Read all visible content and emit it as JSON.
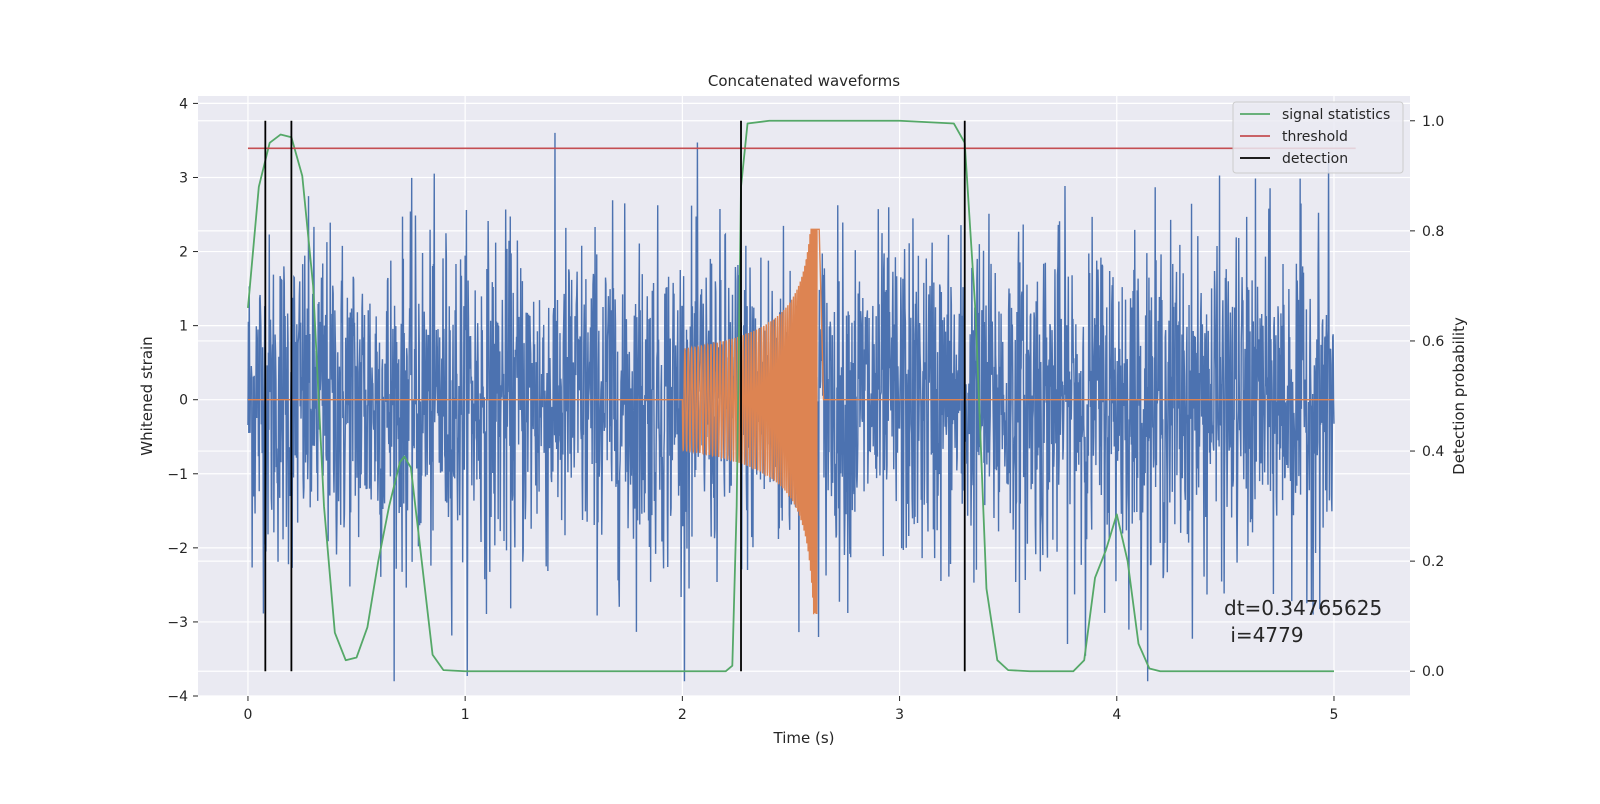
{
  "chart_data": {
    "type": "line",
    "title": "Concatenated waveforms",
    "xlabel": "Time (s)",
    "ylabel_left": "Whitened strain",
    "ylabel_right": "Detection probability",
    "xlim": [
      -0.23,
      5.35
    ],
    "ylim_left": [
      -4.0,
      4.1
    ],
    "ylim_right": [
      -0.045,
      1.045
    ],
    "x_ticks": [
      "0",
      "1",
      "2",
      "3",
      "4",
      "5"
    ],
    "x_tick_values": [
      0,
      1,
      2,
      3,
      4,
      5
    ],
    "y_left_ticks": [
      "4",
      "3",
      "2",
      "1",
      "0",
      "−1",
      "−2",
      "−3",
      "−4"
    ],
    "y_left_tick_values": [
      4,
      3,
      2,
      1,
      0,
      -1,
      -2,
      -3,
      -4
    ],
    "y_right_ticks": [
      "1.0",
      "0.8",
      "0.6",
      "0.4",
      "0.2",
      "0.0"
    ],
    "y_right_tick_values": [
      1.0,
      0.8,
      0.6,
      0.4,
      0.2,
      0.0
    ],
    "grid": true,
    "legend_position": "top-right",
    "legend": [
      {
        "label": "signal statistics",
        "color": "#55a868"
      },
      {
        "label": "threshold",
        "color": "#c44e52"
      },
      {
        "label": "detection",
        "color": "#000000"
      }
    ],
    "annotation_line1": "dt=0.34765625",
    "annotation_line2": " i=4779",
    "series": [
      {
        "role": "whitened-strain-noise",
        "color": "#4c72b0",
        "axis": "left",
        "x_range": [
          0,
          5
        ],
        "amplitude_approx": 3.8
      },
      {
        "role": "injected-chirp",
        "color": "#dd8452",
        "axis": "left",
        "x_start": 2.0,
        "x_merger": 2.62,
        "peak_approx": 2.3,
        "trough_approx": -2.95
      },
      {
        "name": "signal statistics",
        "color": "#55a868",
        "axis": "right",
        "x": [
          0,
          0.05,
          0.1,
          0.15,
          0.2,
          0.25,
          0.3,
          0.35,
          0.4,
          0.45,
          0.5,
          0.55,
          0.6,
          0.65,
          0.7,
          0.72,
          0.75,
          0.8,
          0.85,
          0.9,
          1.0,
          1.5,
          2.0,
          2.2,
          2.23,
          2.25,
          2.27,
          2.3,
          2.4,
          2.6,
          3.0,
          3.25,
          3.3,
          3.35,
          3.4,
          3.45,
          3.5,
          3.6,
          3.8,
          3.85,
          3.9,
          3.95,
          4.0,
          4.05,
          4.1,
          4.15,
          4.2,
          4.5,
          5.0
        ],
        "y": [
          0.66,
          0.88,
          0.96,
          0.975,
          0.97,
          0.9,
          0.7,
          0.3,
          0.07,
          0.02,
          0.025,
          0.08,
          0.2,
          0.3,
          0.38,
          0.39,
          0.37,
          0.2,
          0.03,
          0.002,
          0.0,
          0.0,
          0.0,
          0.0,
          0.01,
          0.3,
          0.88,
          0.995,
          1.0,
          1.0,
          1.0,
          0.995,
          0.96,
          0.65,
          0.15,
          0.02,
          0.002,
          0.0,
          0.0,
          0.02,
          0.17,
          0.22,
          0.285,
          0.2,
          0.05,
          0.005,
          0.0,
          0.0,
          0.0
        ]
      },
      {
        "name": "threshold",
        "color": "#c44e52",
        "axis": "right",
        "x": [
          0,
          5.1
        ],
        "y": [
          0.95,
          0.95
        ]
      },
      {
        "name": "detection",
        "color": "#000000",
        "axis": "right",
        "x_positions": [
          0.08,
          0.2,
          2.27,
          3.3
        ],
        "y_range": [
          0.0,
          1.0
        ]
      }
    ]
  }
}
